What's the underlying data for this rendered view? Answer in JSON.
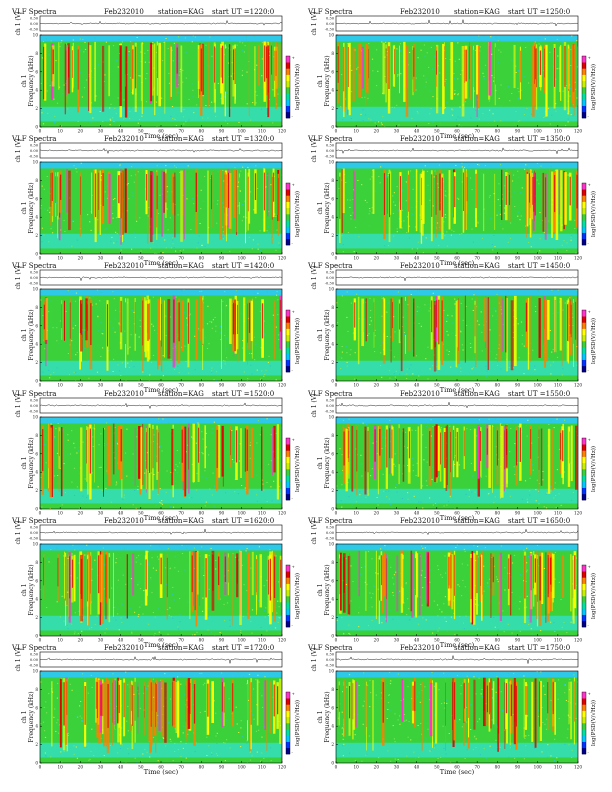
{
  "page": {
    "colorbar_label": "log(PSD(V/√Hz))",
    "y_label_channel": "ch 1",
    "y_label_freq": "Frequency (kHz)",
    "x_label": "Time (sec)"
  },
  "chart_data": [
    {
      "type": "heatmap",
      "title": "VLF Spectra",
      "date": "Feb232010",
      "station": "station=KAG",
      "start": "start UT =1220:0",
      "xlabel": "Time (sec)",
      "ylabel": "Frequency (kHz)",
      "xlim": [
        0,
        120
      ],
      "ylim": [
        0,
        10
      ],
      "xticks": [
        "0",
        "10",
        "20",
        "30",
        "40",
        "50",
        "60",
        "70",
        "80",
        "90",
        "100",
        "110",
        "120"
      ],
      "yticks": [
        "0",
        "2",
        "4",
        "6",
        "8",
        "10"
      ],
      "ch_label": "ch 1 (V)",
      "ch_ticks": [
        "0.30",
        "0.00",
        "-0.30"
      ],
      "colorbar_ticks": [
        "+",
        "-"
      ],
      "colorbar_label": "log(PSD(V/√Hz))"
    },
    {
      "type": "heatmap",
      "title": "VLF Spectra",
      "date": "Feb232010",
      "station": "station=KAG",
      "start": "start UT =1250:0",
      "xlabel": "Time (sec)",
      "ylabel": "Frequency (kHz)",
      "xlim": [
        0,
        120
      ],
      "ylim": [
        0,
        10
      ],
      "xticks": [
        "0",
        "10",
        "20",
        "30",
        "40",
        "50",
        "60",
        "70",
        "80",
        "90",
        "100",
        "110",
        "120"
      ],
      "yticks": [
        "0",
        "2",
        "4",
        "6",
        "8",
        "10"
      ],
      "ch_label": "ch 1 (V)",
      "ch_ticks": [
        "0.30",
        "0.00",
        "-0.30"
      ],
      "colorbar_ticks": [
        "+",
        "-"
      ],
      "colorbar_label": "log(PSD(V/√Hz))"
    },
    {
      "type": "heatmap",
      "title": "VLF Spectra",
      "date": "Feb232010",
      "station": "station=KAG",
      "start": "start UT =1320:0",
      "xlabel": "Time (sec)",
      "ylabel": "Frequency (kHz)",
      "xlim": [
        0,
        120
      ],
      "ylim": [
        0,
        10
      ],
      "xticks": [
        "0",
        "10",
        "20",
        "30",
        "40",
        "50",
        "60",
        "70",
        "80",
        "90",
        "100",
        "110",
        "120"
      ],
      "yticks": [
        "0",
        "2",
        "4",
        "6",
        "8",
        "10"
      ],
      "ch_label": "ch 1 (V)",
      "ch_ticks": [
        "0.30",
        "0.00",
        "-0.30"
      ],
      "colorbar_ticks": [
        "+",
        "-"
      ],
      "colorbar_label": "log(PSD(V/√Hz))"
    },
    {
      "type": "heatmap",
      "title": "VLF Spectra",
      "date": "Feb232010",
      "station": "station=KAG",
      "start": "start UT =1350:0",
      "xlabel": "Time (sec)",
      "ylabel": "Frequency (kHz)",
      "xlim": [
        0,
        120
      ],
      "ylim": [
        0,
        10
      ],
      "xticks": [
        "0",
        "10",
        "20",
        "30",
        "40",
        "50",
        "60",
        "70",
        "80",
        "90",
        "100",
        "110",
        "120"
      ],
      "yticks": [
        "0",
        "2",
        "4",
        "6",
        "8",
        "10"
      ],
      "ch_label": "ch 1 (V)",
      "ch_ticks": [
        "0.30",
        "0.00",
        "-0.30"
      ],
      "colorbar_ticks": [
        "+",
        "-"
      ],
      "colorbar_label": "log(PSD(V/√Hz))"
    },
    {
      "type": "heatmap",
      "title": "VLF Spectra",
      "date": "Feb232010",
      "station": "station=KAG",
      "start": "start UT =1420:0",
      "xlabel": "Time (sec)",
      "ylabel": "Frequency (kHz)",
      "xlim": [
        0,
        120
      ],
      "ylim": [
        0,
        10
      ],
      "xticks": [
        "0",
        "10",
        "20",
        "30",
        "40",
        "50",
        "60",
        "70",
        "80",
        "90",
        "100",
        "110",
        "120"
      ],
      "yticks": [
        "0",
        "2",
        "4",
        "6",
        "8",
        "10"
      ],
      "ch_label": "ch 1 (V)",
      "ch_ticks": [
        "0.30",
        "0.00",
        "-0.30"
      ],
      "colorbar_ticks": [
        "+",
        "-"
      ],
      "colorbar_label": "log(PSD(V/√Hz))"
    },
    {
      "type": "heatmap",
      "title": "VLF Spectra",
      "date": "Feb232010",
      "station": "station=KAG",
      "start": "start UT =1450:0",
      "xlabel": "Time (sec)",
      "ylabel": "Frequency (kHz)",
      "xlim": [
        0,
        120
      ],
      "ylim": [
        0,
        10
      ],
      "xticks": [
        "0",
        "10",
        "20",
        "30",
        "40",
        "50",
        "60",
        "70",
        "80",
        "90",
        "100",
        "110",
        "120"
      ],
      "yticks": [
        "0",
        "2",
        "4",
        "6",
        "8",
        "10"
      ],
      "ch_label": "ch 1 (V)",
      "ch_ticks": [
        "0.30",
        "0.00",
        "-0.30"
      ],
      "colorbar_ticks": [
        "+",
        "-"
      ],
      "colorbar_label": "log(PSD(V/√Hz))"
    },
    {
      "type": "heatmap",
      "title": "VLF Spectra",
      "date": "Feb232010",
      "station": "station=KAG",
      "start": "start UT =1520:0",
      "xlabel": "Time (sec)",
      "ylabel": "Frequency (kHz)",
      "xlim": [
        0,
        120
      ],
      "ylim": [
        0,
        10
      ],
      "xticks": [
        "0",
        "10",
        "20",
        "30",
        "40",
        "50",
        "60",
        "70",
        "80",
        "90",
        "100",
        "110",
        "120"
      ],
      "yticks": [
        "0",
        "2",
        "4",
        "6",
        "8",
        "10"
      ],
      "ch_label": "ch 1 (V)",
      "ch_ticks": [
        "0.30",
        "0.00",
        "-0.30"
      ],
      "colorbar_ticks": [
        "+",
        "-"
      ],
      "colorbar_label": "log(PSD(V/√Hz))"
    },
    {
      "type": "heatmap",
      "title": "VLF Spectra",
      "date": "Feb232010",
      "station": "station=KAG",
      "start": "start UT =1550:0",
      "xlabel": "Time (sec)",
      "ylabel": "Frequency (kHz)",
      "xlim": [
        0,
        120
      ],
      "ylim": [
        0,
        10
      ],
      "xticks": [
        "0",
        "10",
        "20",
        "30",
        "40",
        "50",
        "60",
        "70",
        "80",
        "90",
        "100",
        "110",
        "120"
      ],
      "yticks": [
        "0",
        "2",
        "4",
        "6",
        "8",
        "10"
      ],
      "ch_label": "ch 1 (V)",
      "ch_ticks": [
        "0.30",
        "0.00",
        "-0.30"
      ],
      "colorbar_ticks": [
        "+",
        "-"
      ],
      "colorbar_label": "log(PSD(V/√Hz))"
    },
    {
      "type": "heatmap",
      "title": "VLF Spectra",
      "date": "Feb232010",
      "station": "station=KAG",
      "start": "start UT =1620:0",
      "xlabel": "Time (sec)",
      "ylabel": "Frequency (kHz)",
      "xlim": [
        0,
        120
      ],
      "ylim": [
        0,
        10
      ],
      "xticks": [
        "0",
        "10",
        "20",
        "30",
        "40",
        "50",
        "60",
        "70",
        "80",
        "90",
        "100",
        "110",
        "120"
      ],
      "yticks": [
        "0",
        "2",
        "4",
        "6",
        "8",
        "10"
      ],
      "ch_label": "ch 1 (V)",
      "ch_ticks": [
        "0.30",
        "0.00",
        "-0.30"
      ],
      "colorbar_ticks": [
        "+",
        "-"
      ],
      "colorbar_label": "log(PSD(V/√Hz))"
    },
    {
      "type": "heatmap",
      "title": "VLF Spectra",
      "date": "Feb232010",
      "station": "station=KAG",
      "start": "start UT =1650:0",
      "xlabel": "Time (sec)",
      "ylabel": "Frequency (kHz)",
      "xlim": [
        0,
        120
      ],
      "ylim": [
        0,
        10
      ],
      "xticks": [
        "0",
        "10",
        "20",
        "30",
        "40",
        "50",
        "60",
        "70",
        "80",
        "90",
        "100",
        "110",
        "120"
      ],
      "yticks": [
        "0",
        "2",
        "4",
        "6",
        "8",
        "10"
      ],
      "ch_label": "ch 1 (V)",
      "ch_ticks": [
        "0.30",
        "0.00",
        "-0.30"
      ],
      "colorbar_ticks": [
        "+",
        "-"
      ],
      "colorbar_label": "log(PSD(V/√Hz))"
    },
    {
      "type": "heatmap",
      "title": "VLF Spectra",
      "date": "Feb232010",
      "station": "station=KAG",
      "start": "start UT =1720:0",
      "xlabel": "Time (sec)",
      "ylabel": "Frequency (kHz)",
      "xlim": [
        0,
        120
      ],
      "ylim": [
        0,
        10
      ],
      "xticks": [
        "0",
        "10",
        "20",
        "30",
        "40",
        "50",
        "60",
        "70",
        "80",
        "90",
        "100",
        "110",
        "120"
      ],
      "yticks": [
        "0",
        "2",
        "4",
        "6",
        "8",
        "10"
      ],
      "ch_label": "ch 1 (V)",
      "ch_ticks": [
        "0.30",
        "0.00",
        "-0.30"
      ],
      "colorbar_ticks": [
        "+",
        "-"
      ],
      "colorbar_label": "log(PSD(V/√Hz))"
    },
    {
      "type": "heatmap",
      "title": "VLF Spectra",
      "date": "Feb232010",
      "station": "station=KAG",
      "start": "start UT =1750:0",
      "xlabel": "Time (sec)",
      "ylabel": "Frequency (kHz)",
      "xlim": [
        0,
        120
      ],
      "ylim": [
        0,
        10
      ],
      "xticks": [
        "0",
        "10",
        "20",
        "30",
        "40",
        "50",
        "60",
        "70",
        "80",
        "90",
        "100",
        "110",
        "120"
      ],
      "yticks": [
        "0",
        "2",
        "4",
        "6",
        "8",
        "10"
      ],
      "ch_label": "ch 1 (V)",
      "ch_ticks": [
        "0.30",
        "0.00",
        "-0.30"
      ],
      "colorbar_ticks": [
        "+",
        "-"
      ],
      "colorbar_label": "log(PSD(V/√Hz))"
    }
  ],
  "colors": {
    "colormap": [
      "#00008b",
      "#0033ff",
      "#00c8ff",
      "#00e0a0",
      "#3ad13a",
      "#c8f000",
      "#ffff00",
      "#ff8000",
      "#e00000",
      "#ff33cc"
    ],
    "spectrogram_base": "#3ad13a",
    "spectrogram_top_band": "#2fc9e8",
    "spectrogram_low_band": "#33e0d0"
  }
}
